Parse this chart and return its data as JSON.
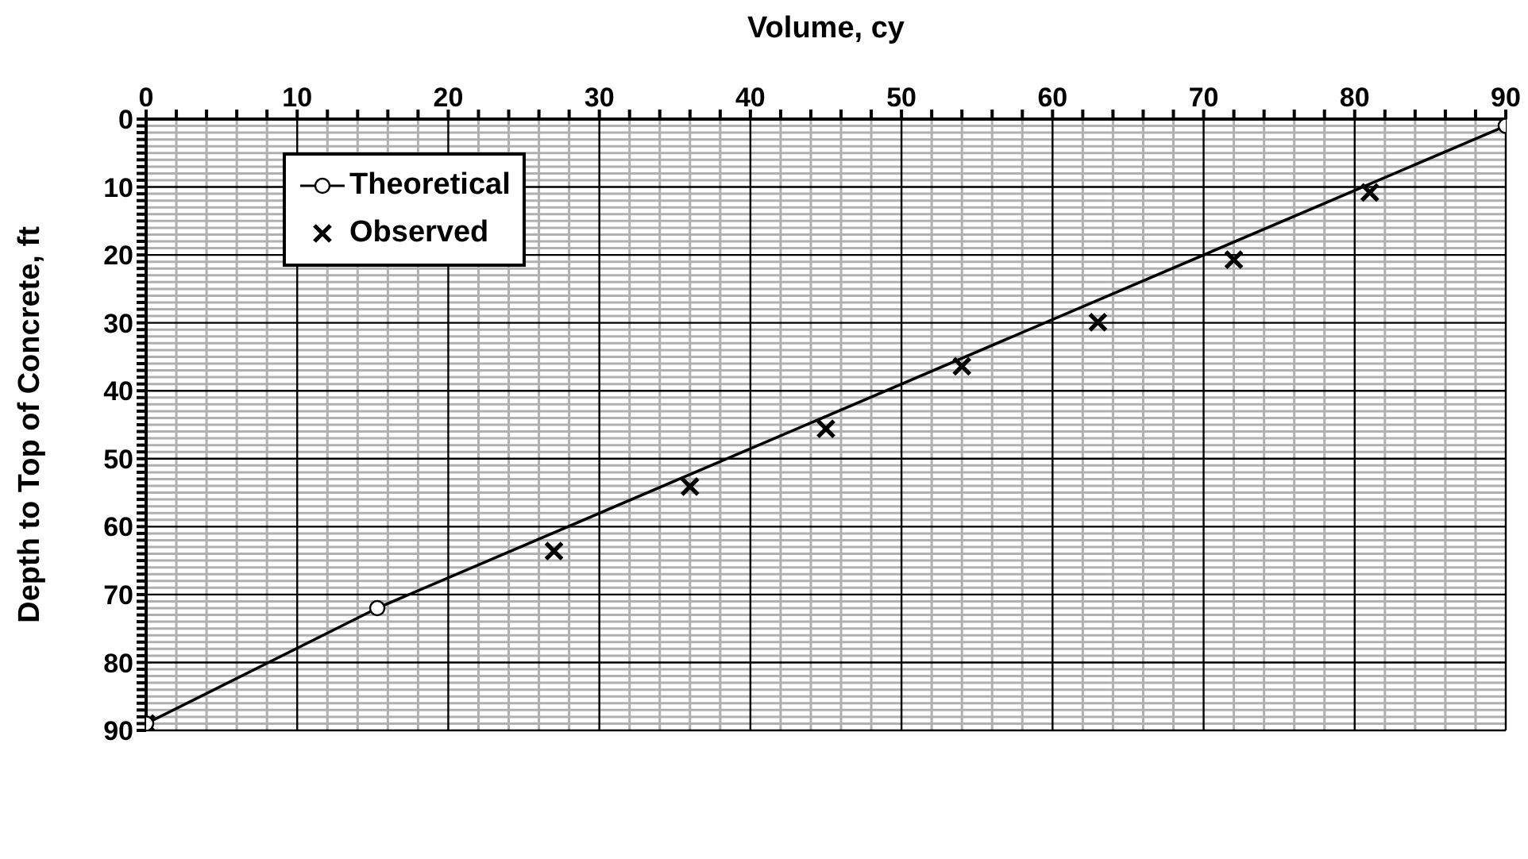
{
  "chart_data": {
    "type": "line",
    "xlabel": "Volume, cy",
    "ylabel": "Depth to Top of Concrete, ft",
    "xlim": [
      0,
      90
    ],
    "ylim": [
      90,
      0
    ],
    "xticks": [
      0,
      {
        "value": 2,
        "label": null
      },
      {
        "value": 4,
        "label": null
      },
      {
        "value": 6,
        "label": null
      },
      {
        "value": 8,
        "label": null
      },
      10,
      {
        "value": 12,
        "label": null
      },
      {
        "value": 14,
        "label": null
      },
      {
        "value": 16,
        "label": null
      },
      {
        "value": 18,
        "label": null
      },
      20,
      {
        "value": 22,
        "label": null
      },
      {
        "value": 24,
        "label": null
      },
      {
        "value": 26,
        "label": null
      },
      {
        "value": 28,
        "label": null
      },
      30,
      {
        "value": 32,
        "label": null
      },
      {
        "value": 34,
        "label": null
      },
      {
        "value": 36,
        "label": null
      },
      {
        "value": 38,
        "label": null
      },
      40,
      {
        "value": 42,
        "label": null
      },
      {
        "value": 44,
        "label": null
      },
      {
        "value": 46,
        "label": null
      },
      {
        "value": 48,
        "label": null
      },
      50,
      {
        "value": 52,
        "label": null
      },
      {
        "value": 54,
        "label": null
      },
      {
        "value": 56,
        "label": null
      },
      {
        "value": 58,
        "label": null
      },
      60,
      {
        "value": 62,
        "label": null
      },
      {
        "value": 64,
        "label": null
      },
      {
        "value": 66,
        "label": null
      },
      {
        "value": 68,
        "label": null
      },
      70,
      {
        "value": 72,
        "label": null
      },
      {
        "value": 74,
        "label": null
      },
      {
        "value": 76,
        "label": null
      },
      {
        "value": 78,
        "label": null
      },
      80,
      {
        "value": 82,
        "label": null
      },
      {
        "value": 84,
        "label": null
      },
      {
        "value": 86,
        "label": null
      },
      {
        "value": 88,
        "label": null
      },
      90
    ],
    "yticks": [
      0,
      {
        "value": 1,
        "label": null
      },
      {
        "value": 2,
        "label": null
      },
      {
        "value": 3,
        "label": null
      },
      {
        "value": 4,
        "label": null
      },
      {
        "value": 5,
        "label": null
      },
      {
        "value": 6,
        "label": null
      },
      {
        "value": 7,
        "label": null
      },
      {
        "value": 8,
        "label": null
      },
      {
        "value": 9,
        "label": null
      },
      10,
      {
        "value": 11,
        "label": null
      },
      {
        "value": 12,
        "label": null
      },
      {
        "value": 13,
        "label": null
      },
      {
        "value": 14,
        "label": null
      },
      {
        "value": 15,
        "label": null
      },
      {
        "value": 16,
        "label": null
      },
      {
        "value": 17,
        "label": null
      },
      {
        "value": 18,
        "label": null
      },
      {
        "value": 19,
        "label": null
      },
      20,
      {
        "value": 21,
        "label": null
      },
      {
        "value": 22,
        "label": null
      },
      {
        "value": 23,
        "label": null
      },
      {
        "value": 24,
        "label": null
      },
      {
        "value": 25,
        "label": null
      },
      {
        "value": 26,
        "label": null
      },
      {
        "value": 27,
        "label": null
      },
      {
        "value": 28,
        "label": null
      },
      {
        "value": 29,
        "label": null
      },
      30,
      {
        "value": 31,
        "label": null
      },
      {
        "value": 32,
        "label": null
      },
      {
        "value": 33,
        "label": null
      },
      {
        "value": 34,
        "label": null
      },
      {
        "value": 35,
        "label": null
      },
      {
        "value": 36,
        "label": null
      },
      {
        "value": 37,
        "label": null
      },
      {
        "value": 38,
        "label": null
      },
      {
        "value": 39,
        "label": null
      },
      40,
      {
        "value": 41,
        "label": null
      },
      {
        "value": 42,
        "label": null
      },
      {
        "value": 43,
        "label": null
      },
      {
        "value": 44,
        "label": null
      },
      {
        "value": 45,
        "label": null
      },
      {
        "value": 46,
        "label": null
      },
      {
        "value": 47,
        "label": null
      },
      {
        "value": 48,
        "label": null
      },
      {
        "value": 49,
        "label": null
      },
      50,
      {
        "value": 51,
        "label": null
      },
      {
        "value": 52,
        "label": null
      },
      {
        "value": 53,
        "label": null
      },
      {
        "value": 54,
        "label": null
      },
      {
        "value": 55,
        "label": null
      },
      {
        "value": 56,
        "label": null
      },
      {
        "value": 57,
        "label": null
      },
      {
        "value": 58,
        "label": null
      },
      {
        "value": 59,
        "label": null
      },
      60,
      {
        "value": 61,
        "label": null
      },
      {
        "value": 62,
        "label": null
      },
      {
        "value": 63,
        "label": null
      },
      {
        "value": 64,
        "label": null
      },
      {
        "value": 65,
        "label": null
      },
      {
        "value": 66,
        "label": null
      },
      {
        "value": 67,
        "label": null
      },
      {
        "value": 68,
        "label": null
      },
      {
        "value": 69,
        "label": null
      },
      70,
      {
        "value": 71,
        "label": null
      },
      {
        "value": 72,
        "label": null
      },
      {
        "value": 73,
        "label": null
      },
      {
        "value": 74,
        "label": null
      },
      {
        "value": 75,
        "label": null
      },
      {
        "value": 76,
        "label": null
      },
      {
        "value": 77,
        "label": null
      },
      {
        "value": 78,
        "label": null
      },
      {
        "value": 79,
        "label": null
      },
      80,
      {
        "value": 81,
        "label": null
      },
      {
        "value": 82,
        "label": null
      },
      {
        "value": 83,
        "label": null
      },
      {
        "value": 84,
        "label": null
      },
      {
        "value": 85,
        "label": null
      },
      {
        "value": 86,
        "label": null
      },
      {
        "value": 87,
        "label": null
      },
      {
        "value": 88,
        "label": null
      },
      {
        "value": 89,
        "label": null
      },
      90
    ],
    "grid": true,
    "legend": "top left",
    "series": [
      {
        "name": "Theoretical",
        "color": "#000000",
        "marker": "circle",
        "line_style": "solid",
        "x": [
          0,
          15.3,
          90
        ],
        "values": [
          89,
          72,
          1
        ]
      },
      {
        "name": "Observed",
        "type": "scatter",
        "color": "#000000",
        "marker": "cross",
        "x": [
          0,
          27,
          36,
          45,
          54,
          63,
          72,
          81
        ],
        "values": [
          89,
          63.6,
          54.1,
          45.6,
          36.4,
          29.9,
          20.7,
          10.8
        ]
      }
    ]
  }
}
